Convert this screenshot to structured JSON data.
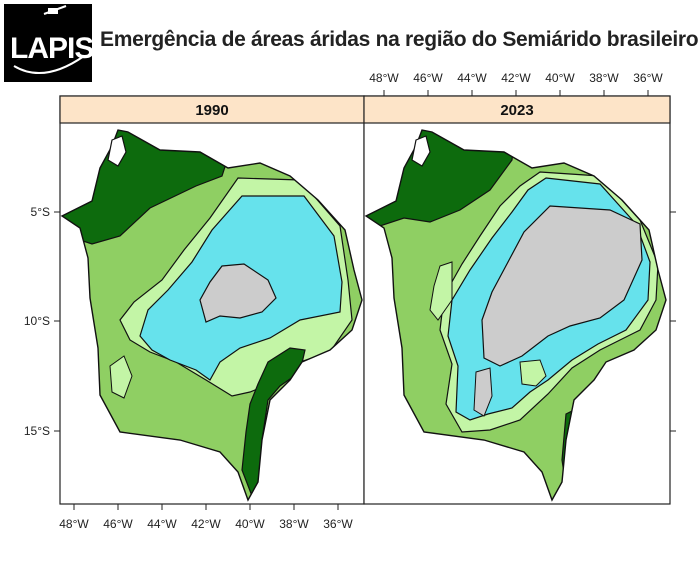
{
  "header": {
    "logo_text": "LAPIS",
    "title": "Emergência de áreas áridas na região do Semiárido brasileiro"
  },
  "panels": [
    {
      "year": "1990"
    },
    {
      "year": "2023"
    }
  ],
  "axes": {
    "lon_labels": [
      "48°W",
      "46°W",
      "44°W",
      "42°W",
      "40°W",
      "38°W",
      "36°W"
    ],
    "lat_labels": [
      "5°S",
      "10°S",
      "15°S"
    ]
  },
  "colors": {
    "dark_green": "#0d6b0d",
    "medium_green": "#8fcf63",
    "light_green": "#c3f5a6",
    "cyan": "#66e2ec",
    "gray": "#cccccc",
    "strip": "#fde4c8"
  }
}
